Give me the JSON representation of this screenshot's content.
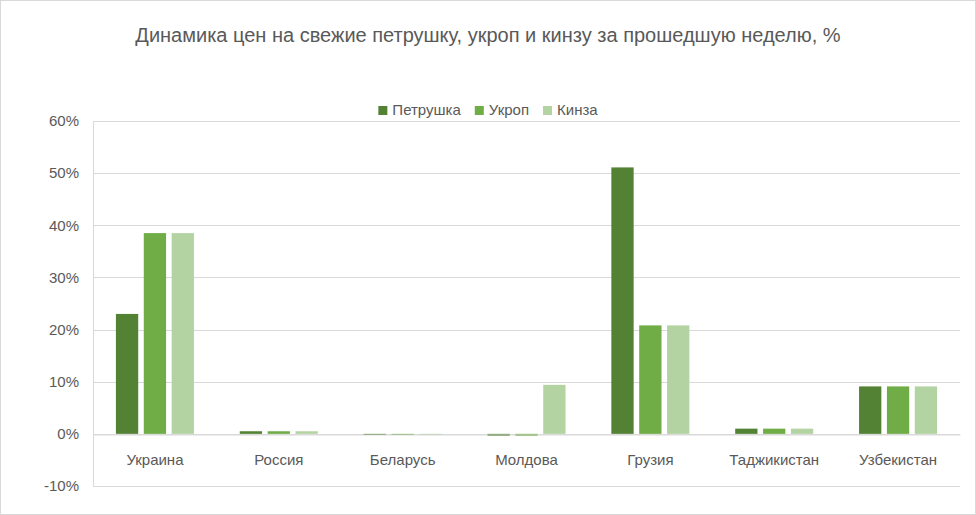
{
  "chart_data": {
    "type": "bar",
    "title": "Динамика цен на свежие петрушку, укроп и кинзу за прошедшую неделю, %",
    "categories": [
      "Украина",
      "Россия",
      "Беларусь",
      "Молдова",
      "Грузия",
      "Таджикистан",
      "Узбекистан"
    ],
    "series": [
      {
        "name": "Петрушка",
        "color": "#548235",
        "values": [
          23.0,
          0.5,
          -0.2,
          -0.4,
          51.1,
          1.0,
          9.1
        ]
      },
      {
        "name": "Укроп",
        "color": "#70ad47",
        "values": [
          38.5,
          0.5,
          -0.2,
          -0.4,
          20.8,
          1.0,
          9.1
        ]
      },
      {
        "name": "Кинза",
        "color": "#b4d3a3",
        "values": [
          38.5,
          0.5,
          -0.2,
          9.4,
          20.8,
          1.0,
          9.1
        ]
      }
    ],
    "ylim": [
      -10,
      60
    ],
    "yticks": [
      {
        "value": -10,
        "label": "-10%"
      },
      {
        "value": 0,
        "label": "0%"
      },
      {
        "value": 10,
        "label": "10%"
      },
      {
        "value": 20,
        "label": "20%"
      },
      {
        "value": 30,
        "label": "30%"
      },
      {
        "value": 40,
        "label": "40%"
      },
      {
        "value": 50,
        "label": "50%"
      },
      {
        "value": 60,
        "label": "60%"
      }
    ],
    "grid": true,
    "legend": "top"
  }
}
